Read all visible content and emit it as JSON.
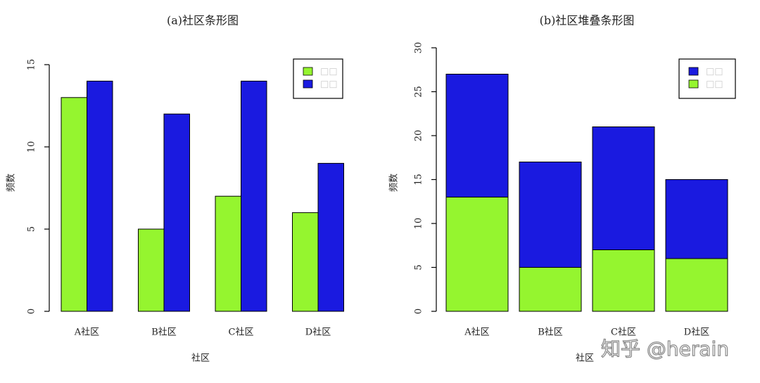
{
  "chart_data": [
    {
      "type": "bar",
      "title": "(a)社区条形图",
      "x_label": "社区",
      "y_label": "频数",
      "categories": [
        "A社区",
        "B社区",
        "C社区",
        "D社区"
      ],
      "series": [
        {
          "name": "□□",
          "color": "#95f52f",
          "values": [
            13,
            5,
            7,
            6
          ]
        },
        {
          "name": "□□",
          "color": "#1a1ae0",
          "values": [
            14,
            12,
            14,
            9
          ]
        }
      ],
      "ylim": [
        0,
        15
      ],
      "yticks": [
        0,
        5,
        10,
        15
      ],
      "stacked": false,
      "legend": "top-right"
    },
    {
      "type": "bar",
      "title": "(b)社区堆叠条形图",
      "x_label": "社区",
      "y_label": "频数",
      "categories": [
        "A社区",
        "B社区",
        "C社区",
        "D社区"
      ],
      "series": [
        {
          "name": "□□",
          "color": "#95f52f",
          "values": [
            13,
            5,
            7,
            6
          ]
        },
        {
          "name": "□□",
          "color": "#1a1ae0",
          "values": [
            14,
            12,
            14,
            9
          ]
        }
      ],
      "ylim": [
        0,
        30
      ],
      "yticks": [
        0,
        5,
        10,
        15,
        20,
        25,
        30
      ],
      "stacked": true,
      "legend": "top-right"
    }
  ],
  "watermark": "知乎 @herain"
}
